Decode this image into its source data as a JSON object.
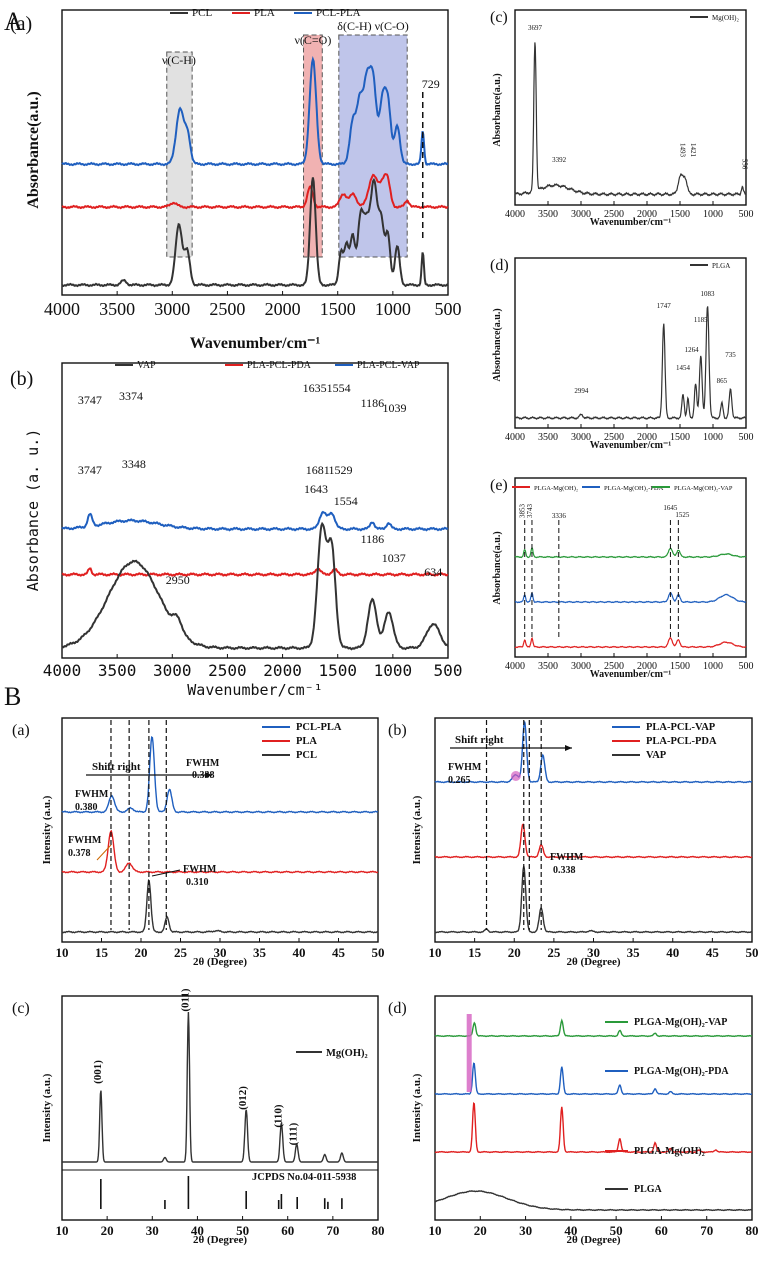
{
  "section_labels": {
    "A": "A",
    "B": "B"
  },
  "colors": {
    "black": "#333333",
    "red": "#e02020",
    "blue": "#1f5fbf",
    "green": "#2a9a3a",
    "gray_band": "#c8c8c8",
    "red_band": "#e57373",
    "blue_band": "#8a96d8",
    "pink": "#d45fc0"
  },
  "chart_data": [
    {
      "id": "Aa",
      "panel": "(a)",
      "type": "line",
      "legend": [
        "PCL",
        "PLA",
        "PCL-PLA"
      ],
      "xlabel": "Wavenumber/cm⁻¹",
      "ylabel": "Absorbance(a.u.)",
      "xlim": [
        4000,
        500
      ],
      "xticks": [
        "4000",
        "3500",
        "3000",
        "2500",
        "2000",
        "1500",
        "1000",
        "500"
      ],
      "annotations": [
        "ν(C-H)",
        "ν(C=O)",
        "δ(C-H) ν(C-O)",
        "729"
      ],
      "bands": [
        [
          3050,
          2820
        ],
        [
          1810,
          1640
        ],
        [
          1490,
          870
        ]
      ],
      "series": [
        {
          "name": "PCL-PLA",
          "offset": 1.55,
          "peaks": [
            [
              2930,
              0.5,
              35
            ],
            [
              2860,
              0.25,
              25
            ],
            [
              1725,
              0.95,
              30
            ],
            [
              1360,
              0.4,
              30
            ],
            [
              1300,
              0.5,
              25
            ],
            [
              1240,
              0.7,
              30
            ],
            [
              1180,
              0.75,
              30
            ],
            [
              1090,
              0.6,
              30
            ],
            [
              1040,
              0.45,
              25
            ],
            [
              960,
              0.35,
              25
            ],
            [
              729,
              0.3,
              12
            ]
          ]
        },
        {
          "name": "PLA",
          "offset": 1.0,
          "peaks": [
            [
              2990,
              0.04,
              30
            ],
            [
              1750,
              0.18,
              25
            ],
            [
              1450,
              0.12,
              30
            ],
            [
              1360,
              0.12,
              30
            ],
            [
              1180,
              0.28,
              40
            ],
            [
              1085,
              0.22,
              35
            ],
            [
              1045,
              0.15,
              25
            ],
            [
              870,
              0.06,
              20
            ]
          ]
        },
        {
          "name": "PCL",
          "offset": 0.0,
          "peaks": [
            [
              2940,
              0.55,
              30
            ],
            [
              2865,
              0.3,
              25
            ],
            [
              3440,
              0.04,
              25
            ],
            [
              1725,
              0.98,
              25
            ],
            [
              1470,
              0.3,
              20
            ],
            [
              1420,
              0.35,
              20
            ],
            [
              1365,
              0.45,
              22
            ],
            [
              1295,
              0.55,
              25
            ],
            [
              1240,
              0.55,
              30
            ],
            [
              1170,
              0.9,
              30
            ],
            [
              1105,
              0.55,
              25
            ],
            [
              1045,
              0.45,
              22
            ],
            [
              960,
              0.35,
              22
            ],
            [
              729,
              0.3,
              10
            ]
          ]
        }
      ]
    },
    {
      "id": "Ab",
      "panel": "(b)",
      "type": "line",
      "legend": [
        "VAP",
        "PLA-PCL-PDA",
        "PLA-PCL-VAP"
      ],
      "xlabel": "Wavenumber/cm⁻¹",
      "ylabel": "Absorbance (a. u.)",
      "xlim": [
        4000,
        500
      ],
      "xticks": [
        "4000",
        "3500",
        "3000",
        "2500",
        "2000",
        "1500",
        "1000",
        "500"
      ],
      "peak_labels_vap": [
        "3348",
        "2950",
        "1643",
        "1554",
        "1186",
        "1037",
        "634"
      ],
      "peak_labels_pda": [
        "3747",
        "1681",
        "1529"
      ],
      "peak_labels_vap_blend": [
        "3747",
        "3374",
        "16351554",
        "1186",
        "1039"
      ],
      "series": [
        {
          "name": "PLA-PCL-VAP",
          "offset": 1.7,
          "peaks": [
            [
              3747,
              0.1,
              20
            ],
            [
              3374,
              0.07,
              250
            ],
            [
              1635,
              0.14,
              30
            ],
            [
              1554,
              0.13,
              30
            ],
            [
              1186,
              0.06,
              20
            ],
            [
              1039,
              0.05,
              20
            ]
          ]
        },
        {
          "name": "PLA-PCL-PDA",
          "offset": 1.05,
          "peaks": [
            [
              3747,
              0.05,
              15
            ],
            [
              1681,
              0.05,
              25
            ],
            [
              1529,
              0.04,
              25
            ]
          ]
        },
        {
          "name": "VAP",
          "offset": 0.0,
          "peaks": [
            [
              3348,
              0.72,
              230
            ],
            [
              2950,
              0.1,
              40
            ],
            [
              1643,
              1.0,
              40
            ],
            [
              1554,
              0.8,
              35
            ],
            [
              1186,
              0.4,
              40
            ],
            [
              1037,
              0.3,
              40
            ],
            [
              634,
              0.2,
              60
            ]
          ]
        }
      ]
    },
    {
      "id": "Ac",
      "panel": "(c)",
      "type": "line",
      "legend": [
        "Mg(OH)₂"
      ],
      "xlabel": "Wavenumber/cm⁻¹",
      "ylabel": "Absorbance(a.u.)",
      "xlim": [
        4000,
        500
      ],
      "xticks": [
        "4000",
        "3500",
        "3000",
        "2500",
        "2000",
        "1500",
        "1000",
        "500"
      ],
      "peak_labels": [
        "3697",
        "3392",
        "1493",
        "1421",
        "556"
      ],
      "series": [
        {
          "name": "Mg(OH)₂",
          "offset": 0.0,
          "peaks": [
            [
              3697,
              1.0,
              18
            ],
            [
              3392,
              0.06,
              220
            ],
            [
              1493,
              0.12,
              35
            ],
            [
              1421,
              0.1,
              30
            ],
            [
              556,
              0.05,
              15
            ]
          ]
        }
      ]
    },
    {
      "id": "Ad",
      "panel": "(d)",
      "type": "line",
      "legend": [
        "PLGA"
      ],
      "xlabel": "Wavenumber/cm⁻¹",
      "ylabel": "Absorbance(a.u.)",
      "xlim": [
        4000,
        500
      ],
      "xticks": [
        "4000",
        "3500",
        "3000",
        "2500",
        "2000",
        "1500",
        "1000",
        "500"
      ],
      "peak_labels": [
        "2994",
        "1747",
        "1454",
        "1264",
        "1185",
        "1083",
        "865",
        "735"
      ],
      "series": [
        {
          "name": "PLGA",
          "offset": 0.0,
          "peaks": [
            [
              2994,
              0.03,
              25
            ],
            [
              1747,
              0.82,
              20
            ],
            [
              1454,
              0.2,
              18
            ],
            [
              1380,
              0.17,
              15
            ],
            [
              1264,
              0.3,
              18
            ],
            [
              1185,
              0.55,
              20
            ],
            [
              1083,
              0.98,
              22
            ],
            [
              865,
              0.13,
              18
            ],
            [
              735,
              0.25,
              20
            ]
          ]
        }
      ]
    },
    {
      "id": "Ae",
      "panel": "(e)",
      "type": "line",
      "legend": [
        "PLGA-Mg(OH)₂",
        "PLGA-Mg(OH)₂-PDA",
        "PLGA-Mg(OH)₂-VAP"
      ],
      "xlabel": "Wavenumber/cm⁻¹",
      "ylabel": "Absorbance(a.u.)",
      "xlim": [
        4000,
        500
      ],
      "xticks": [
        "4000",
        "3500",
        "3000",
        "2500",
        "2000",
        "1500",
        "1000",
        "500"
      ],
      "peak_labels": [
        "3853",
        "3743",
        "3336",
        "1645",
        "1525"
      ],
      "series": [
        {
          "name": "PLGA-Mg(OH)₂-VAP",
          "offset": 2.0,
          "peaks": [
            [
              3853,
              0.12,
              15
            ],
            [
              3743,
              0.15,
              15
            ],
            [
              1645,
              0.15,
              30
            ],
            [
              1525,
              0.12,
              25
            ],
            [
              800,
              0.05,
              100
            ]
          ]
        },
        {
          "name": "PLGA-Mg(OH)₂-PDA",
          "offset": 1.0,
          "peaks": [
            [
              3853,
              0.12,
              15
            ],
            [
              3743,
              0.15,
              15
            ],
            [
              1645,
              0.15,
              30
            ],
            [
              1525,
              0.12,
              25
            ],
            [
              800,
              0.12,
              100
            ]
          ]
        },
        {
          "name": "PLGA-Mg(OH)₂",
          "offset": 0.0,
          "peaks": [
            [
              3853,
              0.12,
              15
            ],
            [
              3743,
              0.15,
              15
            ],
            [
              1645,
              0.15,
              30
            ],
            [
              1525,
              0.12,
              25
            ],
            [
              800,
              0.08,
              100
            ]
          ]
        }
      ]
    },
    {
      "id": "Ba",
      "panel": "(a)",
      "type": "line",
      "legend": [
        "PCL-PLA",
        "PLA",
        "PCL"
      ],
      "xlabel": "2θ (Degree)",
      "ylabel": "Intensity (a.u.)",
      "xlim": [
        10,
        50
      ],
      "xticks": [
        "10",
        "15",
        "20",
        "25",
        "30",
        "35",
        "40",
        "45",
        "50"
      ],
      "annotations": [
        "Shift right",
        "FWHM",
        "0.338",
        "FWHM",
        "0.380",
        "FWHM",
        "0.378",
        "FWHM",
        "0.310"
      ],
      "series": [
        {
          "name": "PCL-PLA",
          "offset": 2.0,
          "peaks": [
            [
              16.3,
              0.22,
              0.35
            ],
            [
              18.7,
              0.05,
              0.4
            ],
            [
              21.4,
              1.0,
              0.3
            ],
            [
              23.6,
              0.3,
              0.3
            ]
          ]
        },
        {
          "name": "PLA",
          "offset": 1.0,
          "peaks": [
            [
              16.2,
              0.55,
              0.35
            ],
            [
              18.5,
              0.12,
              0.4
            ]
          ]
        },
        {
          "name": "PCL",
          "offset": 0.0,
          "peaks": [
            [
              21.0,
              0.7,
              0.25
            ],
            [
              23.3,
              0.2,
              0.25
            ],
            [
              29.5,
              0.015,
              0.5
            ]
          ]
        }
      ]
    },
    {
      "id": "Bb",
      "panel": "(b)",
      "type": "line",
      "legend": [
        "PLA-PCL-VAP",
        "PLA-PCL-PDA",
        "VAP"
      ],
      "xlabel": "2θ (Degree)",
      "ylabel": "Intensity (a.u.)",
      "xlim": [
        10,
        50
      ],
      "xticks": [
        "10",
        "15",
        "20",
        "25",
        "30",
        "35",
        "40",
        "45",
        "50"
      ],
      "annotations": [
        "Shift right",
        "FWHM",
        "0.265",
        "FWHM",
        "0.338"
      ],
      "series": [
        {
          "name": "PLA-PCL-VAP",
          "offset": 2.0,
          "peaks": [
            [
              20.2,
              0.12,
              0.4
            ],
            [
              21.3,
              1.0,
              0.25
            ],
            [
              23.6,
              0.45,
              0.25
            ]
          ]
        },
        {
          "name": "PLA-PCL-PDA",
          "offset": 1.0,
          "peaks": [
            [
              21.1,
              0.55,
              0.25
            ],
            [
              23.4,
              0.2,
              0.25
            ]
          ]
        },
        {
          "name": "VAP",
          "offset": 0.0,
          "peaks": [
            [
              16.5,
              0.05,
              0.2
            ],
            [
              21.2,
              1.1,
              0.25
            ],
            [
              23.4,
              0.4,
              0.25
            ],
            [
              29.6,
              0.02,
              0.3
            ]
          ]
        }
      ]
    },
    {
      "id": "Bc",
      "panel": "(c)",
      "type": "line",
      "legend": [
        "Mg(OH)₂"
      ],
      "xlabel": "2θ (Degree)",
      "ylabel": "Intensity (a.u.)",
      "xlim": [
        10,
        80
      ],
      "xticks": [
        "10",
        "20",
        "30",
        "40",
        "50",
        "60",
        "70",
        "80"
      ],
      "peak_labels": [
        "(001)",
        "(011)",
        "(012)",
        "(110)",
        "(111)"
      ],
      "reference_label": "JCPDS No.04-011-5938",
      "reference_sticks": [
        [
          18.6,
          0.5
        ],
        [
          32.8,
          0.15
        ],
        [
          38.0,
          0.55
        ],
        [
          50.8,
          0.3
        ],
        [
          58.0,
          0.15
        ],
        [
          58.6,
          0.25
        ],
        [
          62.1,
          0.2
        ],
        [
          68.2,
          0.18
        ],
        [
          68.9,
          0.12
        ],
        [
          72.0,
          0.18
        ]
      ],
      "series": [
        {
          "name": "Mg(OH)₂",
          "offset": 0.0,
          "peaks": [
            [
              18.6,
              0.48,
              0.25
            ],
            [
              32.8,
              0.03,
              0.3
            ],
            [
              38.0,
              1.0,
              0.25
            ],
            [
              50.8,
              0.35,
              0.3
            ],
            [
              58.6,
              0.26,
              0.3
            ],
            [
              62.0,
              0.12,
              0.3
            ],
            [
              68.2,
              0.05,
              0.3
            ],
            [
              72.0,
              0.06,
              0.3
            ]
          ]
        }
      ]
    },
    {
      "id": "Bd",
      "panel": "(d)",
      "type": "line",
      "legend": [
        "PLGA-Mg(OH)₂-VAP",
        "PLGA-Mg(OH)₂-PDA",
        "PLGA-Mg(OH)₂",
        "PLGA"
      ],
      "xlabel": "2θ (Degree)",
      "ylabel": "Intensity (a.u.)",
      "xlim": [
        10,
        80
      ],
      "xticks": [
        "10",
        "20",
        "30",
        "40",
        "50",
        "60",
        "70",
        "80"
      ],
      "series": [
        {
          "name": "PLGA-Mg(OH)₂-VAP",
          "offset": 3.0,
          "peaks": [
            [
              18.7,
              0.3,
              0.3
            ],
            [
              38.0,
              0.35,
              0.3
            ],
            [
              50.8,
              0.12,
              0.3
            ],
            [
              58.6,
              0.06,
              0.3
            ]
          ]
        },
        {
          "name": "PLGA-Mg(OH)₂-PDA",
          "offset": 2.0,
          "peaks": [
            [
              18.6,
              0.7,
              0.3
            ],
            [
              38.0,
              0.6,
              0.3
            ],
            [
              50.8,
              0.2,
              0.3
            ],
            [
              58.6,
              0.12,
              0.3
            ],
            [
              62.0,
              0.05,
              0.3
            ]
          ]
        },
        {
          "name": "PLGA-Mg(OH)₂",
          "offset": 1.0,
          "peaks": [
            [
              18.6,
              1.1,
              0.3
            ],
            [
              38.0,
              1.0,
              0.3
            ],
            [
              50.8,
              0.3,
              0.3
            ],
            [
              58.6,
              0.2,
              0.3
            ],
            [
              62.0,
              0.08,
              0.3
            ],
            [
              68.2,
              0.04,
              0.3
            ],
            [
              72.0,
              0.05,
              0.3
            ]
          ]
        },
        {
          "name": "PLGA",
          "offset": 0.0,
          "peaks": [
            [
              19.0,
              0.42,
              7
            ]
          ]
        }
      ]
    }
  ]
}
